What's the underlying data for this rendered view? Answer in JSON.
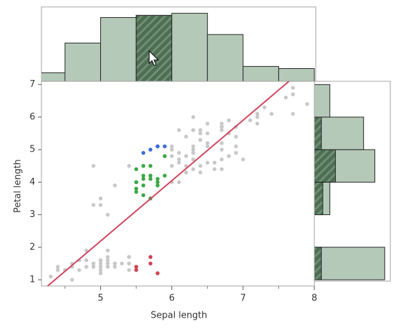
{
  "chart_data": [
    {
      "type": "scatter",
      "xlabel": "Sepal length",
      "ylabel": "Petal length",
      "xlim": [
        4.17,
        8.0
      ],
      "ylim": [
        0.81,
        7.1
      ],
      "xticks": [
        5,
        6,
        7,
        8
      ],
      "xminorticks": [
        4.5,
        5.5,
        6.5,
        7.5
      ],
      "yticks": [
        1,
        2,
        3,
        4,
        5,
        6,
        7
      ],
      "fit": {
        "slope": 1.858,
        "intercept": -7.101,
        "color": "#d0435a"
      },
      "series": [
        {
          "color": "#c8c8c8",
          "x": [
            5.1,
            4.9,
            4.7,
            4.6,
            5.0,
            5.4,
            4.6,
            5.0,
            4.4,
            4.9,
            5.4,
            4.8,
            4.8,
            4.3,
            5.4,
            5.1,
            5.1,
            5.4,
            5.1,
            4.6,
            5.1,
            4.8,
            5.0,
            5.0,
            5.2,
            5.2,
            4.7,
            4.8,
            5.4,
            5.2,
            4.9,
            5.0,
            4.9,
            4.4,
            5.1,
            5.0,
            4.5,
            4.4,
            5.0,
            5.1,
            4.8,
            5.1,
            4.6,
            5.3,
            5.0,
            7.0,
            6.4,
            6.9,
            6.5,
            6.3,
            4.9,
            6.6,
            5.2,
            5.0,
            6.0,
            6.1,
            6.7,
            6.2,
            6.1,
            6.3,
            6.1,
            6.4,
            6.6,
            6.8,
            6.7,
            6.0,
            6.0,
            5.4,
            6.0,
            6.7,
            6.3,
            6.1,
            5.0,
            6.2,
            5.1,
            6.3,
            7.1,
            6.3,
            6.5,
            7.6,
            4.9,
            7.3,
            6.7,
            7.2,
            6.5,
            6.4,
            6.8,
            6.4,
            6.5,
            7.7,
            7.7,
            6.0,
            6.9,
            7.7,
            6.3,
            6.7,
            7.2,
            6.2,
            6.1,
            6.4,
            7.2,
            7.4,
            7.9,
            6.4,
            6.3,
            6.1,
            7.7,
            6.3,
            6.4,
            6.0,
            6.9,
            6.7,
            6.9,
            6.8,
            6.7,
            6.7,
            6.3,
            6.5,
            6.2
          ],
          "y": [
            1.4,
            1.4,
            1.3,
            1.5,
            1.4,
            1.7,
            1.4,
            1.5,
            1.4,
            1.5,
            1.5,
            1.6,
            1.4,
            1.1,
            1.3,
            1.4,
            1.5,
            1.7,
            1.5,
            1.0,
            1.7,
            1.9,
            1.6,
            1.6,
            1.5,
            1.4,
            1.6,
            1.6,
            1.5,
            1.5,
            1.5,
            1.2,
            1.4,
            1.3,
            1.5,
            1.3,
            1.3,
            1.3,
            1.6,
            1.9,
            1.4,
            1.6,
            1.4,
            1.5,
            1.4,
            4.7,
            4.5,
            4.9,
            4.6,
            4.7,
            3.3,
            4.6,
            3.9,
            3.5,
            4.0,
            4.7,
            4.4,
            4.5,
            4.0,
            4.9,
            4.7,
            4.3,
            4.4,
            4.8,
            5.0,
            4.5,
            5.1,
            4.5,
            4.5,
            4.7,
            4.4,
            4.6,
            3.3,
            4.3,
            3.0,
            6.0,
            5.9,
            5.6,
            5.8,
            6.6,
            4.5,
            6.3,
            5.8,
            6.1,
            5.1,
            5.3,
            5.5,
            5.3,
            5.5,
            6.7,
            6.9,
            5.0,
            5.7,
            6.7,
            4.9,
            5.7,
            6.0,
            4.8,
            4.9,
            5.6,
            5.8,
            6.1,
            6.4,
            5.6,
            5.1,
            5.6,
            6.1,
            5.6,
            5.5,
            4.8,
            5.4,
            5.6,
            5.1,
            5.9,
            5.7,
            5.2,
            5.0,
            5.2,
            5.4
          ]
        },
        {
          "color": "#d04050",
          "x": [
            5.8,
            5.7,
            5.7,
            5.5,
            5.5
          ],
          "y": [
            1.2,
            1.5,
            1.7,
            1.4,
            1.3
          ]
        },
        {
          "color": "#3aa845",
          "x": [
            5.5,
            5.7,
            5.9,
            5.6,
            5.6,
            5.8,
            5.6,
            5.9,
            5.7,
            5.5,
            5.5,
            5.8,
            5.6,
            5.5,
            5.5,
            5.8,
            5.6,
            5.7,
            5.7,
            5.7
          ],
          "y": [
            4.0,
            4.5,
            4.2,
            3.6,
            4.5,
            4.1,
            3.9,
            4.8,
            3.5,
            3.8,
            3.7,
            3.9,
            4.1,
            4.0,
            4.4,
            4.0,
            4.2,
            4.2,
            4.2,
            4.1
          ]
        },
        {
          "color": "#3a6bd8",
          "x": [
            5.8,
            5.7,
            5.8,
            5.6,
            5.8,
            5.9
          ],
          "y": [
            5.1,
            5.0,
            5.1,
            4.9,
            5.1,
            5.1
          ]
        }
      ]
    },
    {
      "type": "histogram",
      "orientation": "vertical",
      "color": "#b5c9b9",
      "selected_color": "#4d6e53",
      "bins": [
        4.0,
        4.5,
        5.0,
        5.5,
        6.0,
        6.5,
        7.0,
        7.5,
        8.0
      ],
      "counts": [
        4,
        18,
        30,
        31,
        32,
        22,
        7,
        6
      ],
      "selected": [
        0,
        0,
        0,
        31,
        0,
        0,
        0,
        0
      ],
      "ylim": [
        0,
        35
      ]
    },
    {
      "type": "histogram",
      "orientation": "horizontal",
      "color": "#b5c9b9",
      "selected_color": "#4d6e53",
      "bins": [
        1,
        2,
        3,
        4,
        5,
        6,
        7
      ],
      "counts": [
        50,
        0,
        11,
        43,
        35,
        11
      ],
      "selected": [
        5,
        0,
        6,
        15,
        5,
        0
      ],
      "xlim": [
        0,
        54
      ]
    }
  ]
}
